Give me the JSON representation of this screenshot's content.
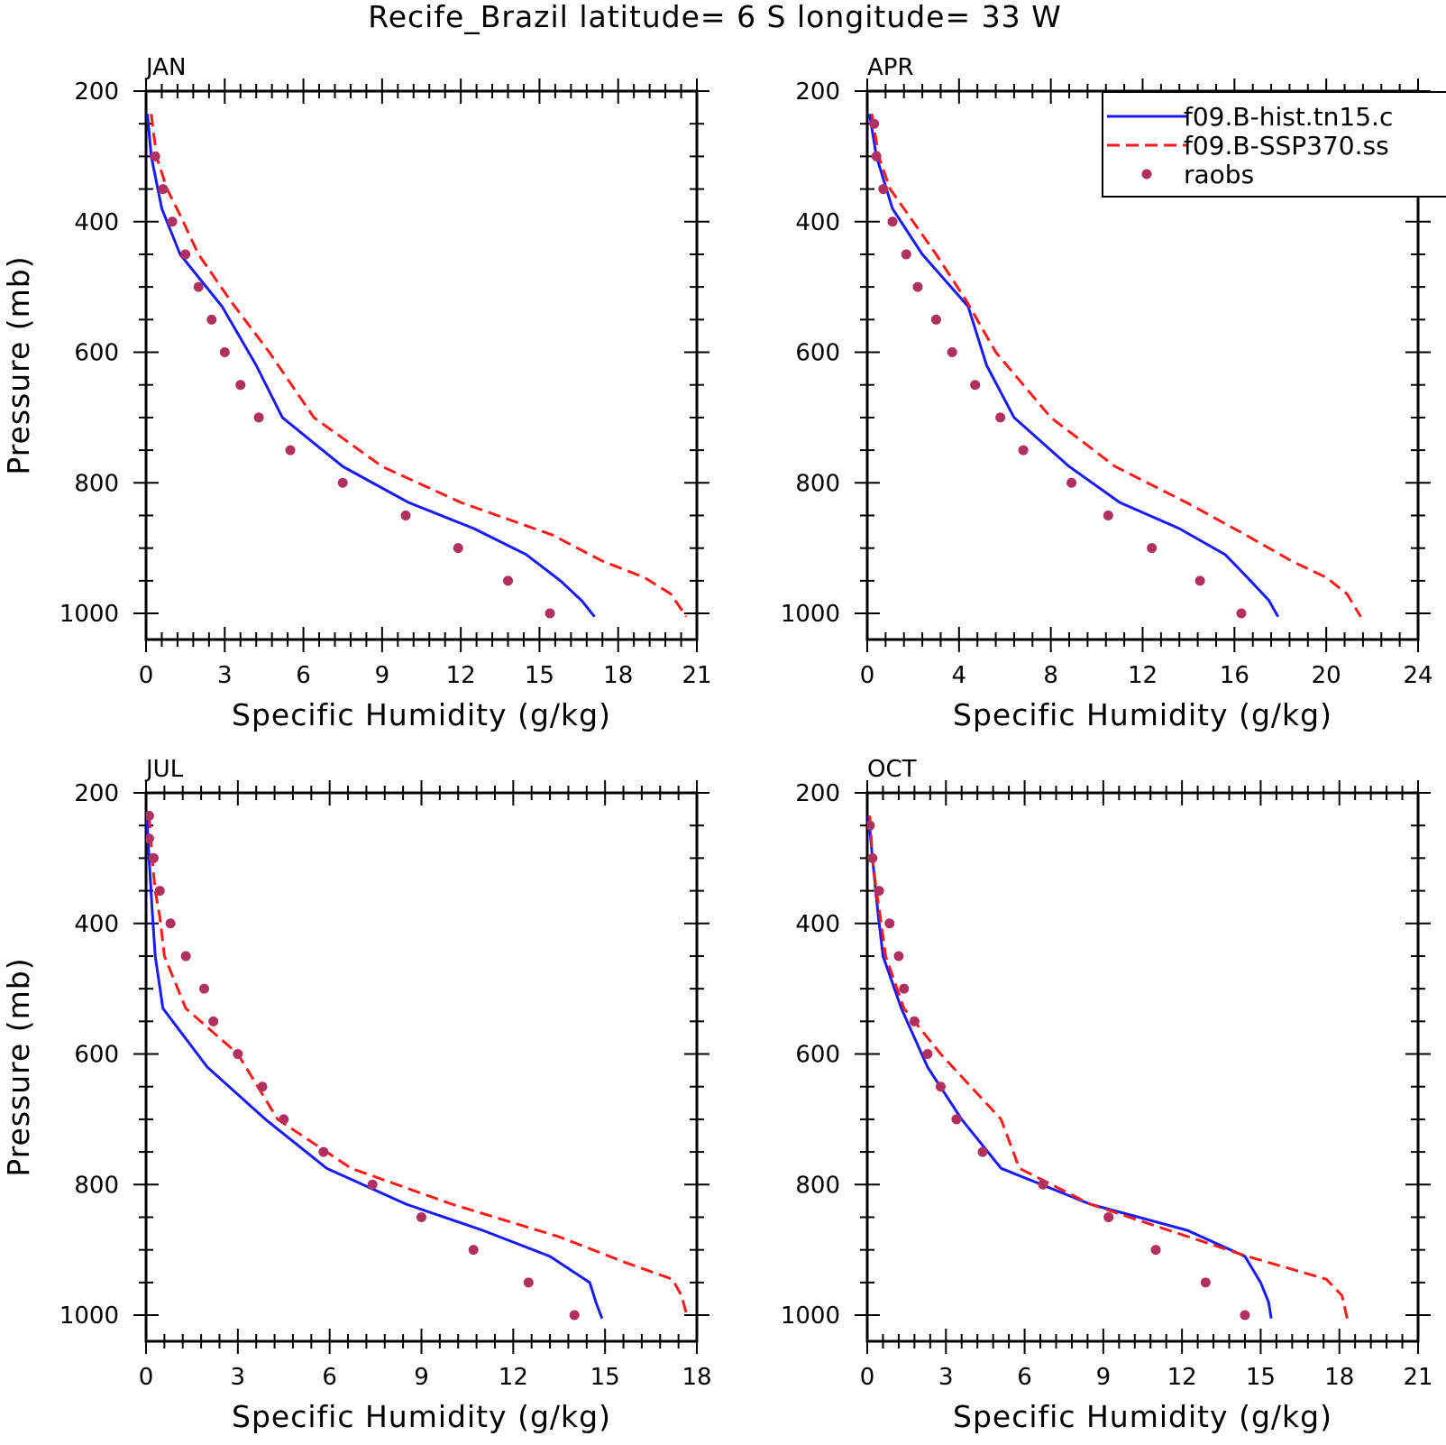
{
  "figure": {
    "title": "Recife_Brazil  latitude= 6 S longitude= 33 W"
  },
  "legend": {
    "entries": [
      {
        "label": "f09.B-hist.tn15.c",
        "style": "solid",
        "color": "#1a1aff"
      },
      {
        "label": "f09.B-SSP370.ss",
        "style": "dashed",
        "color": "#ff1a1a"
      },
      {
        "label": "raobs",
        "style": "marker",
        "color": "#b03060"
      }
    ]
  },
  "colors": {
    "hist": "#1a1aff",
    "ssp370": "#ff1a1a",
    "raobs": "#b03060"
  },
  "chart_data": [
    {
      "type": "line",
      "panel": "JAN",
      "xlabel": "Specific Humidity (g/kg)",
      "ylabel": "Pressure (mb)",
      "xlim": [
        0,
        21
      ],
      "ylim": [
        200,
        1040
      ],
      "y_inverted": true,
      "xticks": [
        0,
        3,
        6,
        9,
        12,
        15,
        18,
        21
      ],
      "yticks": [
        200,
        400,
        600,
        800,
        1000
      ],
      "series": [
        {
          "name": "f09.B-hist.tn15.c",
          "style": "solid",
          "x": [
            0.05,
            0.2,
            0.6,
            1.3,
            2.9,
            4.2,
            5.2,
            7.5,
            10.0,
            12.5,
            14.5,
            15.8,
            16.6,
            17.1
          ],
          "y": [
            235,
            300,
            380,
            450,
            530,
            620,
            700,
            775,
            830,
            870,
            910,
            950,
            980,
            1005
          ]
        },
        {
          "name": "f09.B-SSP370.ss",
          "style": "dashed",
          "x": [
            0.2,
            0.4,
            0.8,
            1.3,
            2.0,
            3.2,
            4.7,
            6.4,
            9.0,
            12.0,
            15.5,
            17.4,
            19.0,
            20.0,
            20.6
          ],
          "y": [
            235,
            300,
            350,
            390,
            450,
            520,
            600,
            700,
            775,
            830,
            880,
            920,
            945,
            970,
            1005
          ]
        },
        {
          "name": "raobs",
          "style": "marker",
          "x": [
            0.35,
            0.65,
            1.0,
            1.5,
            2.0,
            2.5,
            3.0,
            3.6,
            4.3,
            5.5,
            7.5,
            9.9,
            11.9,
            13.8,
            15.4
          ],
          "y": [
            300,
            350,
            400,
            450,
            500,
            550,
            600,
            650,
            700,
            750,
            800,
            850,
            900,
            950,
            1000
          ]
        }
      ]
    },
    {
      "type": "line",
      "panel": "APR",
      "xlabel": "Specific Humidity (g/kg)",
      "ylabel": "",
      "xlim": [
        0,
        24
      ],
      "ylim": [
        200,
        1040
      ],
      "y_inverted": true,
      "xticks": [
        0,
        4,
        8,
        12,
        16,
        20,
        24
      ],
      "yticks": [
        200,
        400,
        600,
        800,
        1000
      ],
      "series": [
        {
          "name": "f09.B-hist.tn15.c",
          "style": "solid",
          "x": [
            0.1,
            0.4,
            1.1,
            2.4,
            4.4,
            5.2,
            6.4,
            8.8,
            11.0,
            13.6,
            15.6,
            16.7,
            17.5,
            17.9
          ],
          "y": [
            235,
            300,
            380,
            450,
            530,
            620,
            700,
            775,
            830,
            870,
            910,
            950,
            980,
            1005
          ]
        },
        {
          "name": "f09.B-SSP370.ss",
          "style": "dashed",
          "x": [
            0.2,
            0.5,
            1.0,
            1.8,
            3.0,
            4.3,
            5.6,
            8.0,
            10.8,
            13.9,
            16.5,
            18.5,
            20.0,
            20.9,
            21.5
          ],
          "y": [
            235,
            300,
            350,
            390,
            450,
            520,
            600,
            700,
            775,
            830,
            880,
            920,
            945,
            970,
            1005
          ]
        },
        {
          "name": "raobs",
          "style": "marker",
          "x": [
            0.3,
            0.4,
            0.7,
            1.1,
            1.7,
            2.2,
            3.0,
            3.7,
            4.7,
            5.8,
            6.8,
            8.9,
            10.5,
            12.4,
            14.5,
            16.3
          ],
          "y": [
            250,
            300,
            350,
            400,
            450,
            500,
            550,
            600,
            650,
            700,
            750,
            800,
            850,
            900,
            950,
            1000
          ]
        }
      ]
    },
    {
      "type": "line",
      "panel": "JUL",
      "xlabel": "Specific Humidity (g/kg)",
      "ylabel": "Pressure (mb)",
      "xlim": [
        0,
        18
      ],
      "ylim": [
        200,
        1040
      ],
      "y_inverted": true,
      "xticks": [
        0,
        3,
        6,
        9,
        12,
        15,
        18
      ],
      "yticks": [
        200,
        400,
        600,
        800,
        1000
      ],
      "series": [
        {
          "name": "f09.B-hist.tn15.c",
          "style": "solid",
          "x": [
            0.02,
            0.1,
            0.2,
            0.3,
            0.55,
            2.0,
            3.9,
            5.9,
            8.5,
            11.0,
            13.2,
            14.5,
            14.7,
            14.9
          ],
          "y": [
            235,
            300,
            380,
            450,
            530,
            620,
            700,
            775,
            830,
            870,
            910,
            950,
            980,
            1005
          ]
        },
        {
          "name": "f09.B-SSP370.ss",
          "style": "dashed",
          "x": [
            0.1,
            0.2,
            0.3,
            0.45,
            0.6,
            1.3,
            3.0,
            4.3,
            6.7,
            10.0,
            13.5,
            15.7,
            17.2,
            17.5,
            17.7
          ],
          "y": [
            235,
            300,
            350,
            390,
            450,
            530,
            600,
            700,
            775,
            830,
            880,
            920,
            945,
            970,
            1005
          ]
        },
        {
          "name": "raobs",
          "style": "marker",
          "x": [
            0.1,
            0.1,
            0.25,
            0.45,
            0.8,
            1.3,
            1.9,
            2.2,
            3.0,
            3.8,
            4.5,
            5.8,
            7.4,
            9.0,
            10.7,
            12.5,
            14.0
          ],
          "y": [
            235,
            270,
            300,
            350,
            400,
            450,
            500,
            550,
            600,
            650,
            700,
            750,
            800,
            850,
            900,
            950,
            1000
          ]
        }
      ]
    },
    {
      "type": "line",
      "panel": "OCT",
      "xlabel": "Specific Humidity (g/kg)",
      "ylabel": "",
      "xlim": [
        0,
        21
      ],
      "ylim": [
        200,
        1040
      ],
      "y_inverted": true,
      "xticks": [
        0,
        3,
        6,
        9,
        12,
        15,
        18,
        21
      ],
      "yticks": [
        200,
        400,
        600,
        800,
        1000
      ],
      "series": [
        {
          "name": "f09.B-hist.tn15.c",
          "style": "solid",
          "x": [
            0.05,
            0.2,
            0.4,
            0.6,
            1.3,
            2.3,
            3.6,
            5.1,
            8.5,
            12.2,
            14.4,
            15.0,
            15.3,
            15.4
          ],
          "y": [
            235,
            300,
            380,
            450,
            530,
            620,
            700,
            775,
            830,
            870,
            910,
            950,
            980,
            1005
          ]
        },
        {
          "name": "f09.B-SSP370.ss",
          "style": "dashed",
          "x": [
            0.1,
            0.2,
            0.35,
            0.5,
            0.7,
            1.4,
            2.8,
            5.1,
            5.8,
            8.5,
            11.5,
            14.5,
            17.5,
            18.1,
            18.3
          ],
          "y": [
            235,
            300,
            350,
            390,
            450,
            530,
            600,
            700,
            775,
            830,
            870,
            910,
            945,
            970,
            1005
          ]
        },
        {
          "name": "raobs",
          "style": "marker",
          "x": [
            0.1,
            0.2,
            0.45,
            0.85,
            1.2,
            1.4,
            1.8,
            2.3,
            2.8,
            3.4,
            4.4,
            6.7,
            9.2,
            11.0,
            12.9,
            14.4
          ],
          "y": [
            250,
            300,
            350,
            400,
            450,
            500,
            550,
            600,
            650,
            700,
            750,
            800,
            850,
            900,
            950,
            1000
          ]
        }
      ]
    }
  ]
}
